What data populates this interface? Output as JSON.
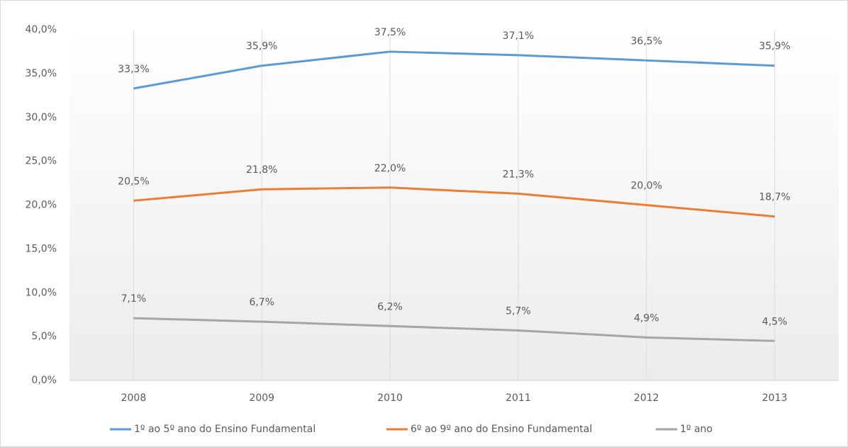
{
  "chart_data": {
    "type": "line",
    "categories": [
      "2008",
      "2009",
      "2010",
      "2011",
      "2012",
      "2013"
    ],
    "series": [
      {
        "name": "1º ao 5º ano do Ensino Fundamental",
        "color": "#5b9bd5",
        "values": [
          33.3,
          35.9,
          37.5,
          37.1,
          36.5,
          35.9
        ],
        "value_labels": [
          "33,3%",
          "35,9%",
          "37,5%",
          "37,1%",
          "36,5%",
          "35,9%"
        ]
      },
      {
        "name": "6º ao 9º ano do Ensino Fundamental",
        "color": "#ed7d31",
        "values": [
          20.5,
          21.8,
          22.0,
          21.3,
          20.0,
          18.7
        ],
        "value_labels": [
          "20,5%",
          "21,8%",
          "22,0%",
          "21,3%",
          "20,0%",
          "18,7%"
        ]
      },
      {
        "name": "1º ano",
        "color": "#a5a5a5",
        "values": [
          7.1,
          6.7,
          6.2,
          5.7,
          4.9,
          4.5
        ],
        "value_labels": [
          "7,1%",
          "6,7%",
          "6,2%",
          "5,7%",
          "4,9%",
          "4,5%"
        ]
      }
    ],
    "ylim": [
      0,
      40
    ],
    "yticks": [
      {
        "value": 0,
        "label": "0,0%"
      },
      {
        "value": 5,
        "label": "5,0%"
      },
      {
        "value": 10,
        "label": "10,0%"
      },
      {
        "value": 15,
        "label": "15,0%"
      },
      {
        "value": 20,
        "label": "20,0%"
      },
      {
        "value": 25,
        "label": "25,0%"
      },
      {
        "value": 30,
        "label": "30,0%"
      },
      {
        "value": 35,
        "label": "35,0%"
      },
      {
        "value": 40,
        "label": "40,0%"
      }
    ],
    "grid": true
  }
}
